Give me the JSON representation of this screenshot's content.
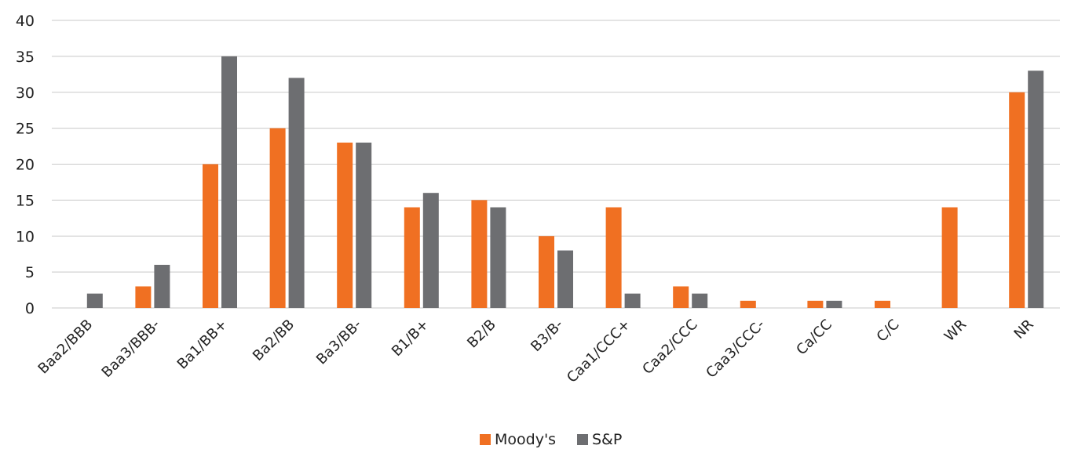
{
  "chart_data": {
    "type": "bar",
    "categories": [
      "Baa2/BBB",
      "Baa3/BBB-",
      "Ba1/BB+",
      "Ba2/BB",
      "Ba3/BB-",
      "B1/B+",
      "B2/B",
      "B3/B-",
      "Caa1/CCC+",
      "Caa2/CCC",
      "Caa3/CCC-",
      "Ca/CC",
      "C/C",
      "WR",
      "NR"
    ],
    "series": [
      {
        "name": "Moody's",
        "color": "#f07022",
        "values": [
          0,
          3,
          20,
          25,
          23,
          14,
          15,
          10,
          14,
          3,
          1,
          1,
          1,
          14,
          30
        ]
      },
      {
        "name": "S&P",
        "color": "#6d6e71",
        "values": [
          2,
          6,
          35,
          32,
          23,
          16,
          14,
          8,
          2,
          2,
          0,
          1,
          0,
          0,
          33
        ]
      }
    ],
    "yticks": [
      "0",
      "5",
      "10",
      "15",
      "20",
      "25",
      "30",
      "35",
      "40"
    ],
    "ylim": [
      0,
      40
    ],
    "grid": true,
    "legend_position": "bottom"
  }
}
